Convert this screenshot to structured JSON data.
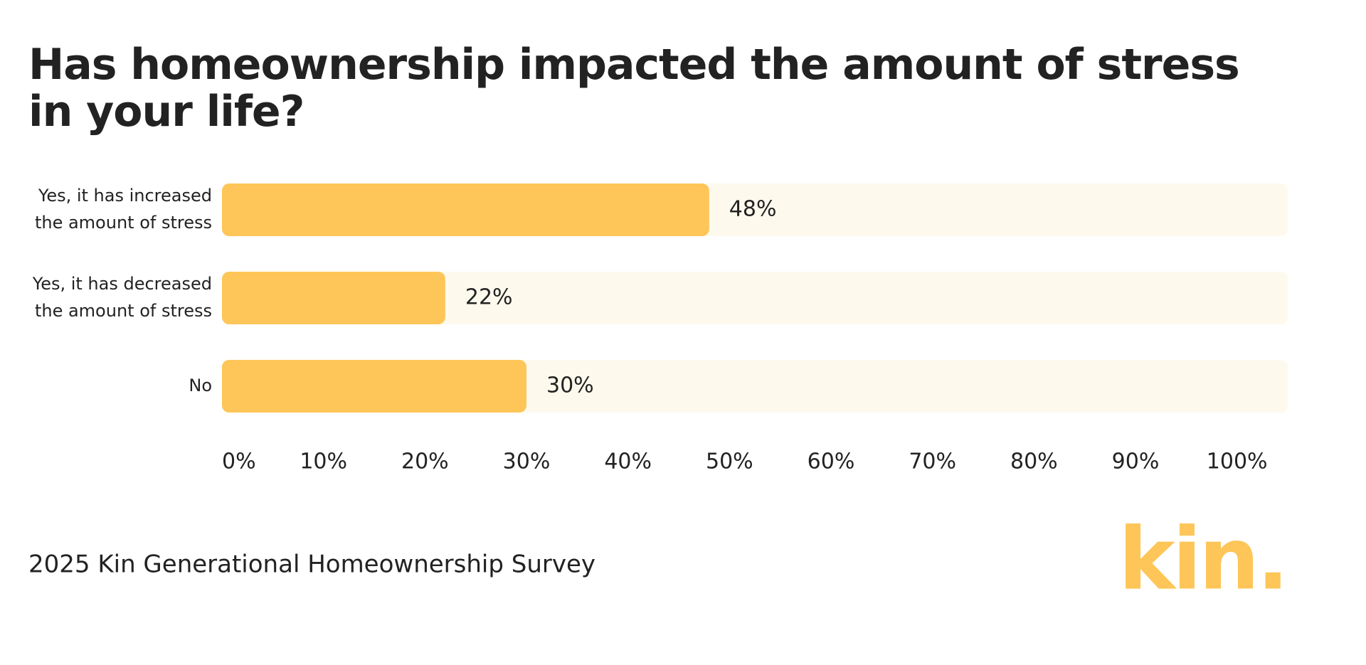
{
  "chart_data": {
    "type": "barh",
    "title": "Has homeownership impacted the amount of stress in your life?",
    "categories": [
      "Yes, it has increased the amount of stress",
      "Yes, it has decreased the amount of stress",
      "No"
    ],
    "values": [
      48,
      22,
      30
    ],
    "value_labels": [
      "48%",
      "22%",
      "30%"
    ],
    "color": "#fec658",
    "track_color": "#fdf9ed",
    "xlim": [
      0,
      105
    ],
    "xticks": [
      {
        "value": 0,
        "label": "0%"
      },
      {
        "value": 10,
        "label": "10%"
      },
      {
        "value": 20,
        "label": "20%"
      },
      {
        "value": 30,
        "label": "30%"
      },
      {
        "value": 40,
        "label": "40%"
      },
      {
        "value": 50,
        "label": "50%"
      },
      {
        "value": 60,
        "label": "60%"
      },
      {
        "value": 70,
        "label": "70%"
      },
      {
        "value": 80,
        "label": "80%"
      },
      {
        "value": 90,
        "label": "90%"
      },
      {
        "value": 100,
        "label": "100%"
      }
    ],
    "grid": false,
    "source": "2025 Kin Generational Homeownership Survey",
    "logo": "kin."
  }
}
